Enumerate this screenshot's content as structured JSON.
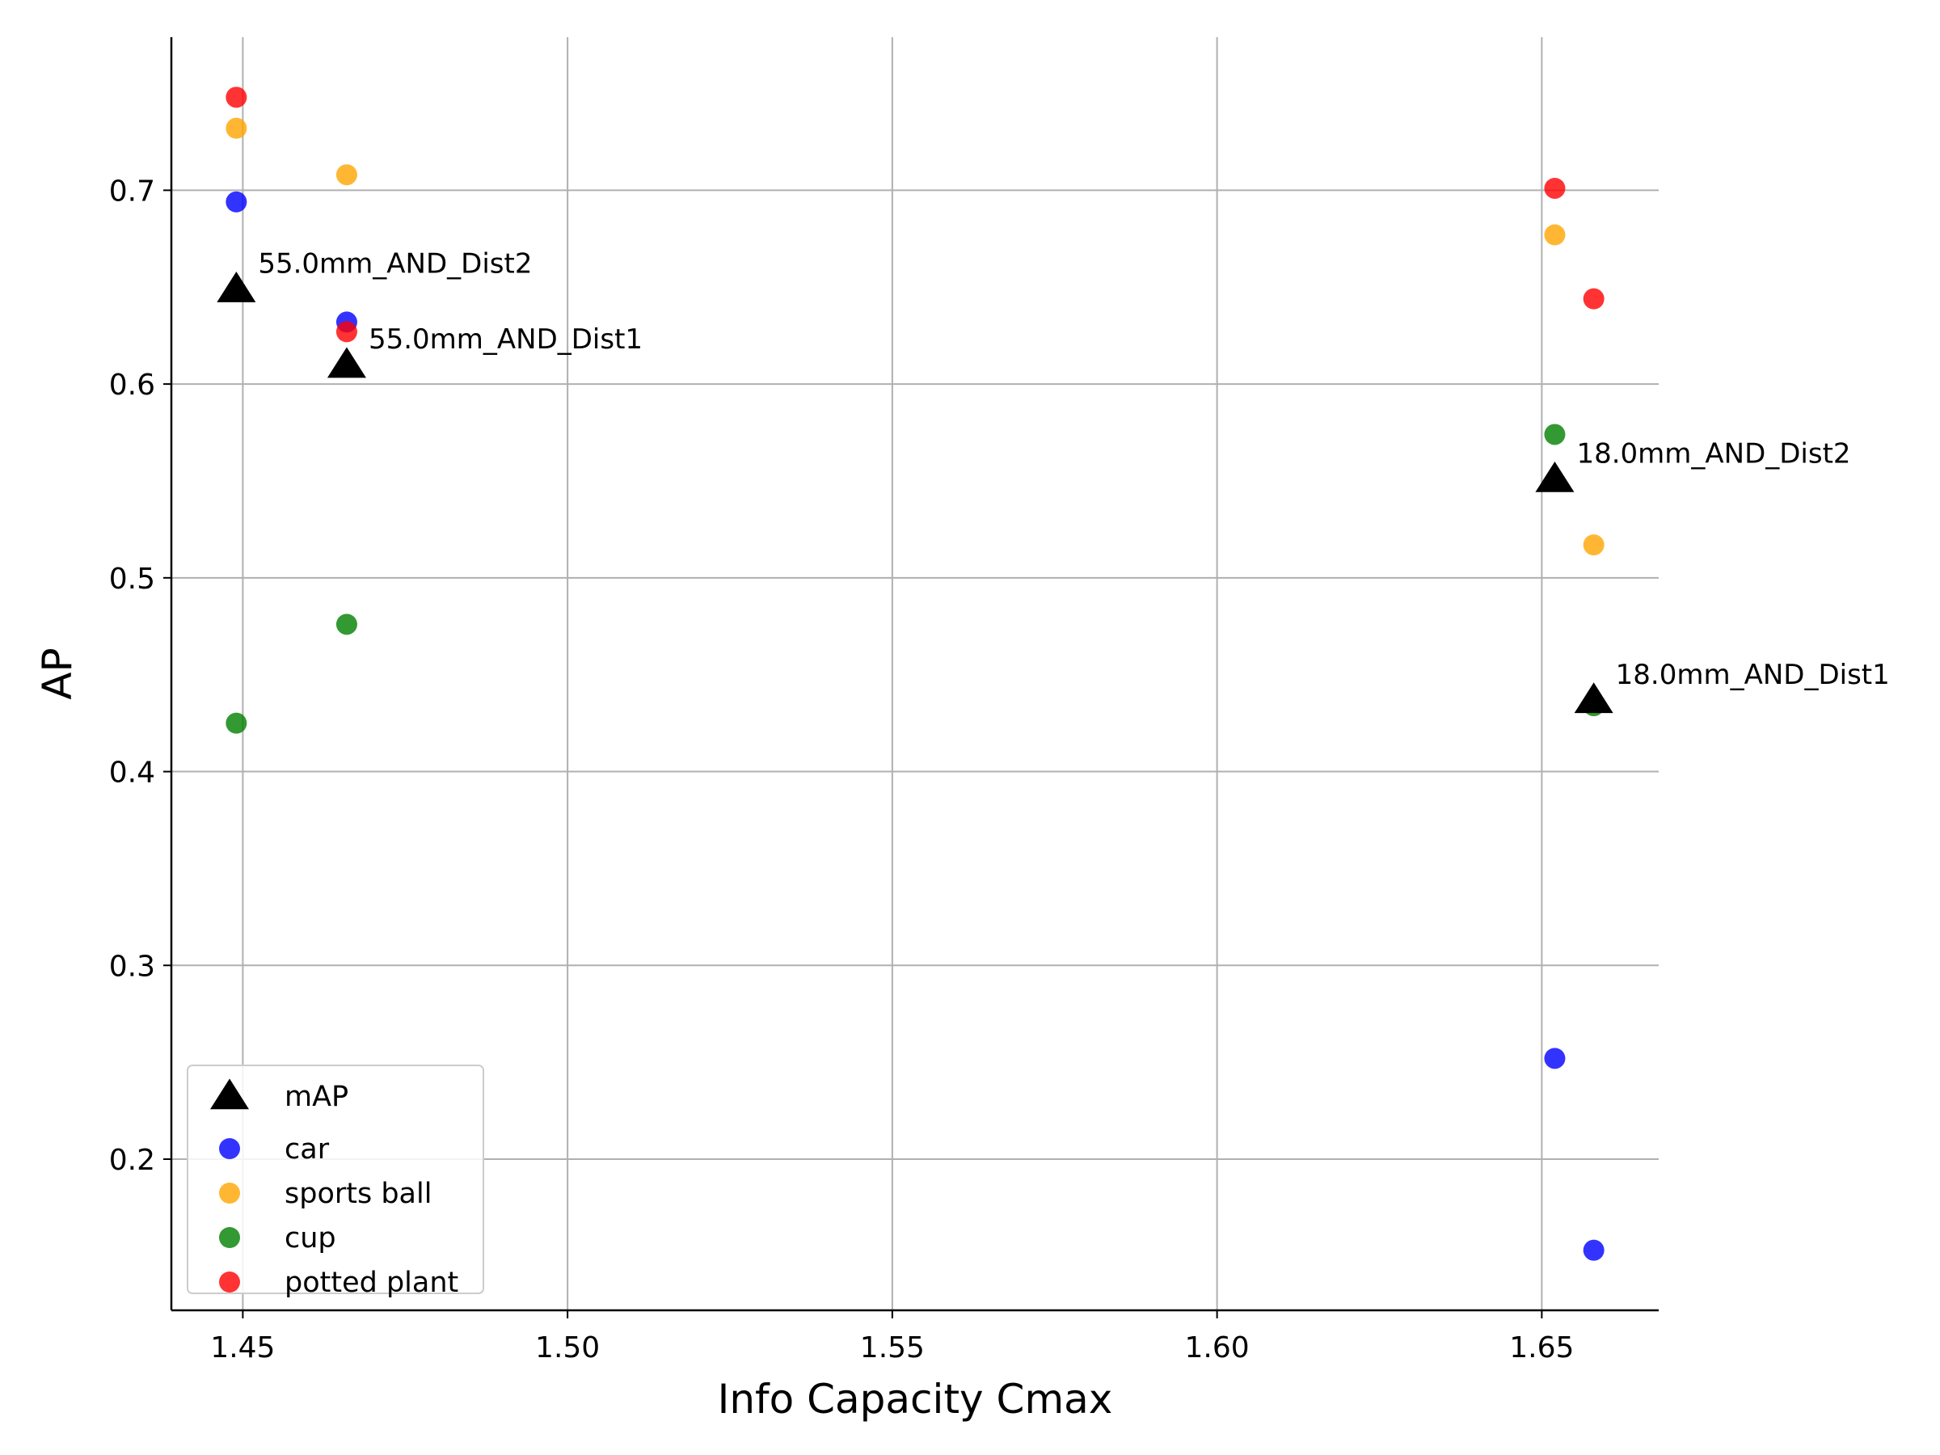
{
  "chart_data": {
    "type": "scatter",
    "title": "",
    "xlabel": "Info Capacity Cmax",
    "ylabel": "AP",
    "xlim": [
      1.439,
      1.668
    ],
    "ylim": [
      0.122,
      0.779
    ],
    "grid": true,
    "legend_position": "lower-left",
    "xticks": [
      {
        "value": 1.45,
        "label": "1.45"
      },
      {
        "value": 1.5,
        "label": "1.50"
      },
      {
        "value": 1.55,
        "label": "1.55"
      },
      {
        "value": 1.6,
        "label": "1.60"
      },
      {
        "value": 1.65,
        "label": "1.65"
      }
    ],
    "yticks": [
      {
        "value": 0.2,
        "label": "0.2"
      },
      {
        "value": 0.3,
        "label": "0.3"
      },
      {
        "value": 0.4,
        "label": "0.4"
      },
      {
        "value": 0.5,
        "label": "0.5"
      },
      {
        "value": 0.6,
        "label": "0.6"
      },
      {
        "value": 0.7,
        "label": "0.7"
      }
    ],
    "series": [
      {
        "name": "mAP",
        "marker": "triangle",
        "color": "#000000",
        "x": [
          1.449,
          1.466,
          1.652,
          1.658
        ],
        "y": [
          0.649,
          0.61,
          0.551,
          0.437
        ]
      },
      {
        "name": "car",
        "marker": "circle",
        "color": "#0000ff",
        "x": [
          1.449,
          1.466,
          1.652,
          1.658
        ],
        "y": [
          0.694,
          0.632,
          0.252,
          0.153
        ]
      },
      {
        "name": "sports ball",
        "marker": "circle",
        "color": "#ffa500",
        "x": [
          1.449,
          1.466,
          1.652,
          1.658
        ],
        "y": [
          0.732,
          0.708,
          0.677,
          0.517
        ]
      },
      {
        "name": "cup",
        "marker": "circle",
        "color": "#008000",
        "x": [
          1.449,
          1.466,
          1.652,
          1.658
        ],
        "y": [
          0.425,
          0.476,
          0.574,
          0.434
        ]
      },
      {
        "name": "potted plant",
        "marker": "circle",
        "color": "#ff0000",
        "x": [
          1.449,
          1.466,
          1.652,
          1.658
        ],
        "y": [
          0.748,
          0.627,
          0.701,
          0.644
        ]
      }
    ],
    "annotations": [
      {
        "text": "55.0mm_AND_Dist2",
        "x": 1.449,
        "y": 0.649
      },
      {
        "text": "55.0mm_AND_Dist1",
        "x": 1.466,
        "y": 0.61
      },
      {
        "text": "18.0mm_AND_Dist2",
        "x": 1.652,
        "y": 0.551
      },
      {
        "text": "18.0mm_AND_Dist1",
        "x": 1.658,
        "y": 0.437
      }
    ]
  }
}
